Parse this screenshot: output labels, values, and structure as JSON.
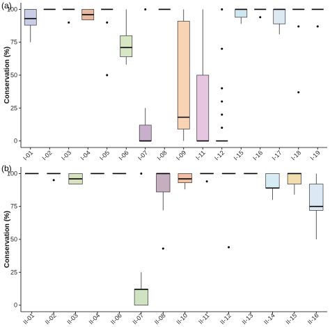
{
  "chart_data": [
    {
      "type": "box",
      "panel_label": "(a)",
      "ylabel": "Conservation (%)",
      "ylim": [
        -5,
        105
      ],
      "yticks": [
        0,
        25,
        50,
        75,
        100
      ],
      "categories": [
        "I-01",
        "I-02",
        "I-03",
        "I-04",
        "I-05",
        "I-06",
        "I-07",
        "I-08",
        "I-09",
        "I-11",
        "I-12",
        "I-15",
        "I-16",
        "I-17",
        "I-18",
        "I-19"
      ],
      "boxes": [
        {
          "category": "I-01",
          "color": "#c9cde6",
          "min": 75,
          "q1": 88,
          "median": 93,
          "q3": 100,
          "max": 100,
          "outliers": []
        },
        {
          "category": "I-02",
          "color": "#ffffff",
          "min": 100,
          "q1": 100,
          "median": 100,
          "q3": 100,
          "max": 100,
          "outliers": []
        },
        {
          "category": "I-03",
          "color": "#ffffff",
          "min": 100,
          "q1": 100,
          "median": 100,
          "q3": 100,
          "max": 100,
          "outliers": [
            90
          ]
        },
        {
          "category": "I-04",
          "color": "#e6b9a0",
          "min": 92,
          "q1": 92,
          "median": 96,
          "q3": 100,
          "max": 100,
          "outliers": []
        },
        {
          "category": "I-05",
          "color": "#ffffff",
          "min": 100,
          "q1": 100,
          "median": 100,
          "q3": 100,
          "max": 100,
          "outliers": [
            90,
            50
          ]
        },
        {
          "category": "I-06",
          "color": "#d7e6c3",
          "min": 58,
          "q1": 64,
          "median": 71,
          "q3": 80,
          "max": 100,
          "outliers": []
        },
        {
          "category": "I-07",
          "color": "#c8b0cc",
          "min": 0,
          "q1": 0,
          "median": 0,
          "q3": 12,
          "max": 25,
          "outliers": [
            100
          ]
        },
        {
          "category": "I-08",
          "color": "#ffffff",
          "min": 100,
          "q1": 100,
          "median": 100,
          "q3": 100,
          "max": 100,
          "outliers": []
        },
        {
          "category": "I-09",
          "color": "#f9d4b4",
          "min": 0,
          "q1": 9,
          "median": 18,
          "q3": 91,
          "max": 100,
          "outliers": []
        },
        {
          "category": "I-11",
          "color": "#e6c5e0",
          "min": 0,
          "q1": 0,
          "median": 0,
          "q3": 50,
          "max": 100,
          "outliers": []
        },
        {
          "category": "I-12",
          "color": "#ffffff",
          "min": 0,
          "q1": 0,
          "median": 0,
          "q3": 0,
          "max": 0,
          "outliers": [
            100,
            70,
            40,
            30,
            20,
            10
          ]
        },
        {
          "category": "I-15",
          "color": "#cde6f0",
          "min": 89,
          "q1": 94,
          "median": 100,
          "q3": 100,
          "max": 100,
          "outliers": []
        },
        {
          "category": "I-16",
          "color": "#ffffff",
          "min": 100,
          "q1": 100,
          "median": 100,
          "q3": 100,
          "max": 100,
          "outliers": [
            94
          ]
        },
        {
          "category": "I-17",
          "color": "#dce8f2",
          "min": 81,
          "q1": 89,
          "median": 100,
          "q3": 100,
          "max": 100,
          "outliers": []
        },
        {
          "category": "I-18",
          "color": "#ffffff",
          "min": 100,
          "q1": 100,
          "median": 100,
          "q3": 100,
          "max": 100,
          "outliers": [
            87,
            37
          ]
        },
        {
          "category": "I-19",
          "color": "#ffffff",
          "min": 100,
          "q1": 100,
          "median": 100,
          "q3": 100,
          "max": 100,
          "outliers": [
            87
          ]
        }
      ]
    },
    {
      "type": "box",
      "panel_label": "(b)",
      "ylabel": "Conservation (%)",
      "ylim": [
        -5,
        105
      ],
      "yticks": [
        0,
        25,
        50,
        75,
        100
      ],
      "categories": [
        "II-01",
        "II-02",
        "II-03",
        "II-04",
        "II-06",
        "II-07",
        "II-08",
        "II-10",
        "II-11",
        "II-12",
        "II-13",
        "II-14",
        "II-15",
        "II-16"
      ],
      "boxes": [
        {
          "category": "II-01",
          "color": "#ffffff",
          "min": 100,
          "q1": 100,
          "median": 100,
          "q3": 100,
          "max": 100,
          "outliers": []
        },
        {
          "category": "II-02",
          "color": "#ffffff",
          "min": 100,
          "q1": 100,
          "median": 100,
          "q3": 100,
          "max": 100,
          "outliers": [
            95
          ]
        },
        {
          "category": "II-03",
          "color": "#d7e3c0",
          "min": 92,
          "q1": 92,
          "median": 96,
          "q3": 100,
          "max": 100,
          "outliers": []
        },
        {
          "category": "II-04",
          "color": "#ffffff",
          "min": 100,
          "q1": 100,
          "median": 100,
          "q3": 100,
          "max": 100,
          "outliers": []
        },
        {
          "category": "II-06",
          "color": "#ffffff",
          "min": 100,
          "q1": 100,
          "median": 100,
          "q3": 100,
          "max": 100,
          "outliers": []
        },
        {
          "category": "II-07",
          "color": "#cfe3c2",
          "min": 0,
          "q1": 0,
          "median": 12,
          "q3": 12,
          "max": 25,
          "outliers": [
            100
          ]
        },
        {
          "category": "II-08",
          "color": "#c4aebf",
          "min": 72,
          "q1": 86,
          "median": 100,
          "q3": 100,
          "max": 100,
          "outliers": [
            43
          ]
        },
        {
          "category": "II-10",
          "color": "#f1bfa5",
          "min": 88,
          "q1": 93,
          "median": 96,
          "q3": 100,
          "max": 100,
          "outliers": []
        },
        {
          "category": "II-11",
          "color": "#ffffff",
          "min": 100,
          "q1": 100,
          "median": 100,
          "q3": 100,
          "max": 100,
          "outliers": [
            94
          ]
        },
        {
          "category": "II-12",
          "color": "#ffffff",
          "min": 100,
          "q1": 100,
          "median": 100,
          "q3": 100,
          "max": 100,
          "outliers": [
            44
          ]
        },
        {
          "category": "II-13",
          "color": "#ffffff",
          "min": 100,
          "q1": 100,
          "median": 100,
          "q3": 100,
          "max": 100,
          "outliers": []
        },
        {
          "category": "II-14",
          "color": "#d7ebf2",
          "min": 80,
          "q1": 89,
          "median": 89,
          "q3": 100,
          "max": 100,
          "outliers": []
        },
        {
          "category": "II-15",
          "color": "#f1deb0",
          "min": 84,
          "q1": 92,
          "median": 100,
          "q3": 100,
          "max": 100,
          "outliers": []
        },
        {
          "category": "II-16",
          "color": "#dce8f4",
          "min": 50,
          "q1": 72,
          "median": 75,
          "q3": 92,
          "max": 100,
          "outliers": []
        }
      ]
    }
  ]
}
